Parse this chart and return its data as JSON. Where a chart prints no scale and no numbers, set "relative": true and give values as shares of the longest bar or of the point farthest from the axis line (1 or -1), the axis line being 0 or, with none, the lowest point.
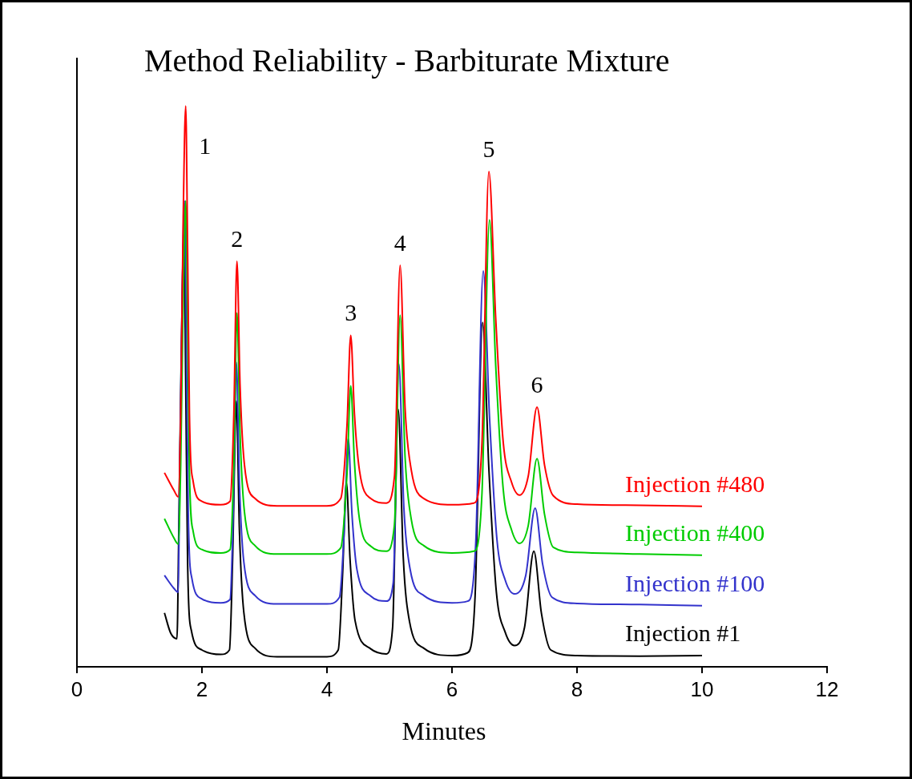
{
  "chart_data": {
    "type": "line",
    "title": "Method Reliability - Barbiturate Mixture",
    "xlabel": "Minutes",
    "relative": true,
    "xlim": [
      0,
      12
    ],
    "xticks": [
      0,
      2,
      4,
      6,
      8,
      10,
      12
    ],
    "grid": false,
    "legend": false,
    "marker": "none",
    "series": [
      {
        "name": "Injection #480",
        "color": "#ff0000",
        "x": [
          1.4,
          1.55,
          1.62,
          1.66,
          1.7,
          1.74,
          1.77,
          1.8,
          1.86,
          2.0,
          2.3,
          2.45,
          2.51,
          2.56,
          2.61,
          2.68,
          2.85,
          3.2,
          4.0,
          4.22,
          4.32,
          4.38,
          4.44,
          4.52,
          4.7,
          4.95,
          5.08,
          5.17,
          5.25,
          5.35,
          5.55,
          6.0,
          6.35,
          6.48,
          6.59,
          6.7,
          6.82,
          6.95,
          7.08,
          7.22,
          7.36,
          7.48,
          7.62,
          8.0,
          9.0,
          10.0
        ],
        "values": [
          0.346,
          0.315,
          0.303,
          0.45,
          0.8,
          1.0,
          0.75,
          0.45,
          0.33,
          0.295,
          0.289,
          0.295,
          0.45,
          0.723,
          0.5,
          0.36,
          0.3,
          0.287,
          0.287,
          0.3,
          0.43,
          0.591,
          0.45,
          0.35,
          0.3,
          0.292,
          0.34,
          0.716,
          0.46,
          0.35,
          0.3,
          0.289,
          0.292,
          0.4,
          0.883,
          0.62,
          0.4,
          0.33,
          0.306,
          0.34,
          0.463,
          0.36,
          0.305,
          0.29,
          0.288,
          0.286
        ]
      },
      {
        "name": "Injection #400",
        "color": "#00cc00",
        "x": [
          1.4,
          1.55,
          1.62,
          1.66,
          1.7,
          1.74,
          1.77,
          1.8,
          1.86,
          2.0,
          2.3,
          2.45,
          2.51,
          2.56,
          2.61,
          2.68,
          2.85,
          3.2,
          4.0,
          4.22,
          4.32,
          4.38,
          4.44,
          4.52,
          4.7,
          4.95,
          5.08,
          5.17,
          5.25,
          5.35,
          5.55,
          6.0,
          6.35,
          6.48,
          6.6,
          6.7,
          6.82,
          6.95,
          7.08,
          7.22,
          7.36,
          7.48,
          7.62,
          8.0,
          9.0,
          10.0
        ],
        "values": [
          0.264,
          0.23,
          0.219,
          0.36,
          0.655,
          0.831,
          0.611,
          0.347,
          0.241,
          0.209,
          0.203,
          0.209,
          0.361,
          0.631,
          0.413,
          0.276,
          0.216,
          0.201,
          0.201,
          0.212,
          0.343,
          0.501,
          0.364,
          0.263,
          0.215,
          0.206,
          0.254,
          0.627,
          0.373,
          0.262,
          0.216,
          0.203,
          0.206,
          0.31,
          0.797,
          0.536,
          0.316,
          0.245,
          0.22,
          0.252,
          0.371,
          0.272,
          0.213,
          0.204,
          0.201,
          0.199
        ]
      },
      {
        "name": "Injection #100",
        "color": "#3333cc",
        "x": [
          1.4,
          1.55,
          1.62,
          1.64,
          1.68,
          1.72,
          1.75,
          1.78,
          1.84,
          2.0,
          2.3,
          2.45,
          2.5,
          2.55,
          2.6,
          2.67,
          2.85,
          3.2,
          4.0,
          4.2,
          4.28,
          4.34,
          4.4,
          4.48,
          4.7,
          4.95,
          5.06,
          5.15,
          5.23,
          5.33,
          5.55,
          6.0,
          6.25,
          6.38,
          6.5,
          6.6,
          6.72,
          6.85,
          7.0,
          7.18,
          7.33,
          7.45,
          7.6,
          8.0,
          9.0,
          10.0
        ],
        "values": [
          0.163,
          0.14,
          0.133,
          0.3,
          0.63,
          0.831,
          0.58,
          0.28,
          0.157,
          0.121,
          0.114,
          0.12,
          0.273,
          0.543,
          0.324,
          0.187,
          0.127,
          0.112,
          0.112,
          0.124,
          0.252,
          0.407,
          0.272,
          0.173,
          0.126,
          0.117,
          0.15,
          0.54,
          0.284,
          0.174,
          0.127,
          0.114,
          0.117,
          0.221,
          0.706,
          0.446,
          0.226,
          0.155,
          0.13,
          0.163,
          0.283,
          0.183,
          0.124,
          0.113,
          0.111,
          0.109
        ]
      },
      {
        "name": "Injection #1",
        "color": "#000000",
        "x": [
          1.4,
          1.5,
          1.6,
          1.63,
          1.67,
          1.71,
          1.74,
          1.77,
          1.83,
          2.0,
          2.3,
          2.44,
          2.49,
          2.55,
          2.6,
          2.67,
          2.85,
          3.2,
          4.0,
          4.18,
          4.25,
          4.31,
          4.37,
          4.45,
          4.7,
          4.95,
          5.05,
          5.14,
          5.22,
          5.32,
          5.55,
          6.0,
          6.25,
          6.37,
          6.49,
          6.59,
          6.71,
          6.85,
          7.0,
          7.16,
          7.31,
          7.43,
          7.58,
          8.0,
          9.0,
          10.0
        ],
        "values": [
          0.096,
          0.06,
          0.05,
          0.25,
          0.56,
          0.77,
          0.51,
          0.19,
          0.065,
          0.03,
          0.022,
          0.03,
          0.19,
          0.474,
          0.24,
          0.097,
          0.033,
          0.018,
          0.018,
          0.03,
          0.165,
          0.329,
          0.19,
          0.082,
          0.032,
          0.023,
          0.07,
          0.459,
          0.196,
          0.081,
          0.033,
          0.02,
          0.025,
          0.127,
          0.614,
          0.353,
          0.133,
          0.062,
          0.038,
          0.07,
          0.206,
          0.096,
          0.03,
          0.02,
          0.019,
          0.02
        ]
      }
    ],
    "annotations": [
      {
        "text": "1",
        "x": 1.74,
        "y": 1.0
      },
      {
        "text": "2",
        "x": 2.56,
        "y": 0.723
      },
      {
        "text": "3",
        "x": 4.38,
        "y": 0.591
      },
      {
        "text": "4",
        "x": 5.17,
        "y": 0.716
      },
      {
        "text": "5",
        "x": 6.59,
        "y": 0.883
      },
      {
        "text": "6",
        "x": 7.36,
        "y": 0.463
      }
    ]
  }
}
